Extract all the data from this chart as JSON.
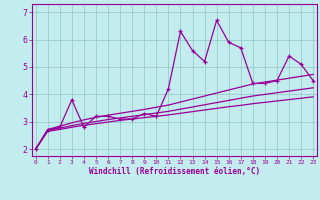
{
  "xlabel": "Windchill (Refroidissement éolien,°C)",
  "background_color": "#c2eced",
  "line_color": "#990099",
  "grid_color": "#99cccc",
  "x_data": [
    0,
    1,
    2,
    3,
    4,
    5,
    6,
    7,
    8,
    9,
    10,
    11,
    12,
    13,
    14,
    15,
    16,
    17,
    18,
    19,
    20,
    21,
    22,
    23
  ],
  "y_main": [
    2.0,
    2.7,
    2.8,
    3.8,
    2.8,
    3.2,
    3.2,
    3.1,
    3.1,
    3.3,
    3.2,
    4.2,
    6.3,
    5.6,
    5.2,
    6.7,
    5.9,
    5.7,
    4.4,
    4.4,
    4.5,
    5.4,
    5.1,
    4.5
  ],
  "y_low": [
    2.0,
    2.65,
    2.72,
    2.8,
    2.87,
    2.93,
    2.99,
    3.05,
    3.1,
    3.15,
    3.2,
    3.25,
    3.31,
    3.37,
    3.43,
    3.49,
    3.55,
    3.6,
    3.66,
    3.71,
    3.76,
    3.81,
    3.86,
    3.91
  ],
  "y_mid": [
    2.0,
    2.68,
    2.77,
    2.86,
    2.94,
    3.01,
    3.08,
    3.14,
    3.2,
    3.26,
    3.32,
    3.38,
    3.46,
    3.54,
    3.62,
    3.7,
    3.78,
    3.86,
    3.94,
    4.0,
    4.06,
    4.12,
    4.18,
    4.24
  ],
  "y_high": [
    2.0,
    2.72,
    2.84,
    2.96,
    3.07,
    3.16,
    3.24,
    3.31,
    3.38,
    3.45,
    3.53,
    3.61,
    3.72,
    3.83,
    3.94,
    4.05,
    4.16,
    4.27,
    4.38,
    4.45,
    4.52,
    4.59,
    4.66,
    4.73
  ],
  "xlim": [
    -0.3,
    23.3
  ],
  "ylim": [
    1.75,
    7.3
  ],
  "yticks": [
    2,
    3,
    4,
    5,
    6,
    7
  ],
  "xticks": [
    0,
    1,
    2,
    3,
    4,
    5,
    6,
    7,
    8,
    9,
    10,
    11,
    12,
    13,
    14,
    15,
    16,
    17,
    18,
    19,
    20,
    21,
    22,
    23
  ],
  "xlabel_fontsize": 5.5,
  "ytick_fontsize": 6.0,
  "xtick_fontsize": 4.5
}
